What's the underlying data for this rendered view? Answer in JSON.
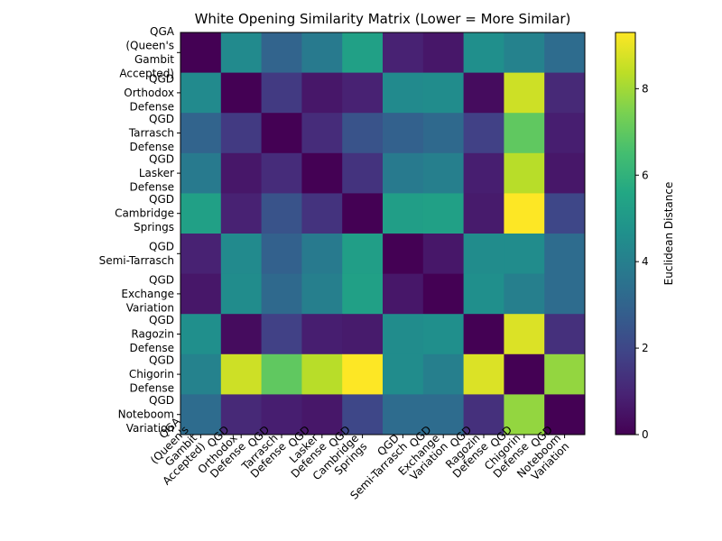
{
  "chart_data": {
    "type": "heatmap",
    "title": "White Opening Similarity Matrix (Lower = More Similar)",
    "labels": [
      [
        "QGA",
        "(Queen's",
        "Gambit",
        "Accepted)"
      ],
      [
        "QGD",
        "Orthodox",
        "Defense"
      ],
      [
        "QGD",
        "Tarrasch",
        "Defense"
      ],
      [
        "QGD",
        "Lasker",
        "Defense"
      ],
      [
        "QGD",
        "Cambridge",
        "Springs"
      ],
      [
        "QGD",
        "Semi-Tarrasch"
      ],
      [
        "QGD",
        "Exchange",
        "Variation"
      ],
      [
        "QGD",
        "Ragozin",
        "Defense"
      ],
      [
        "QGD",
        "Chigorin",
        "Defense"
      ],
      [
        "QGD",
        "Noteboom",
        "Variation"
      ]
    ],
    "matrix": [
      [
        0.0,
        4.4,
        3.0,
        3.8,
        5.3,
        0.9,
        0.6,
        4.6,
        4.1,
        3.3
      ],
      [
        4.4,
        0.0,
        1.6,
        0.6,
        0.9,
        4.4,
        4.5,
        0.3,
        8.6,
        1.1
      ],
      [
        3.0,
        1.6,
        0.0,
        1.2,
        2.4,
        2.9,
        3.2,
        1.8,
        7.0,
        0.8
      ],
      [
        3.8,
        0.6,
        1.2,
        0.0,
        1.4,
        3.8,
        4.0,
        0.8,
        8.3,
        0.6
      ],
      [
        5.3,
        0.9,
        2.4,
        1.4,
        0.0,
        5.2,
        5.3,
        0.7,
        9.3,
        2.0
      ],
      [
        0.9,
        4.4,
        2.9,
        3.8,
        5.2,
        0.0,
        0.6,
        4.5,
        4.5,
        3.3
      ],
      [
        0.6,
        4.5,
        3.2,
        4.0,
        5.3,
        0.6,
        0.0,
        4.6,
        4.0,
        3.3
      ],
      [
        4.6,
        0.3,
        1.8,
        0.8,
        0.7,
        4.5,
        4.6,
        0.0,
        8.8,
        1.3
      ],
      [
        4.1,
        8.6,
        7.0,
        8.3,
        9.3,
        4.5,
        4.0,
        8.8,
        0.0,
        7.8
      ],
      [
        3.3,
        1.1,
        0.8,
        0.6,
        2.0,
        3.3,
        3.3,
        1.3,
        7.8,
        0.0
      ]
    ],
    "vmin": 0,
    "vmax": 9.3,
    "colormap": "viridis",
    "colorbar_label": "Euclidean Distance",
    "colorbar_ticks": [
      0,
      2,
      4,
      6,
      8
    ]
  }
}
